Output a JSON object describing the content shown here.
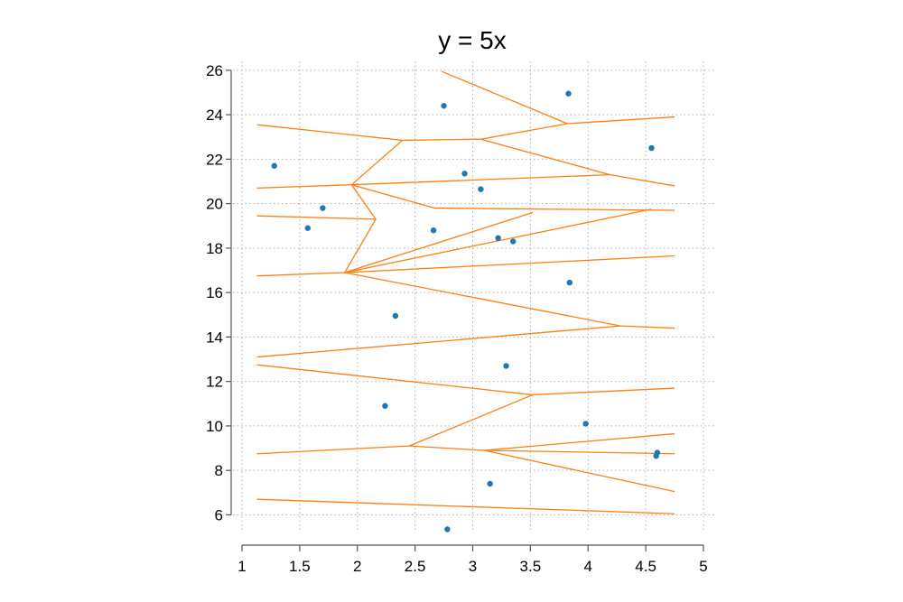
{
  "chart_data": {
    "type": "scatter",
    "title": "y = 5x",
    "xlabel": "",
    "ylabel": "",
    "xlim": [
      1,
      5
    ],
    "ylim": [
      4.8,
      26.4
    ],
    "grid": true,
    "x_ticks": [
      1,
      1.5,
      2,
      2.5,
      3,
      3.5,
      4,
      4.5,
      5
    ],
    "x_tick_labels": [
      "1",
      "1.5",
      "2",
      "2.5",
      "3",
      "3.5",
      "4",
      "4.5",
      "5"
    ],
    "y_ticks": [
      6,
      8,
      10,
      12,
      14,
      16,
      18,
      20,
      22,
      24,
      26
    ],
    "y_tick_labels": [
      "6",
      "8",
      "10",
      "12",
      "14",
      "16",
      "18",
      "20",
      "22",
      "24",
      "26"
    ],
    "colors": {
      "points": "#1f77b4",
      "edges": "#ff7f0e",
      "grid": "#b0b0b0",
      "axis": "#555555"
    },
    "points": [
      {
        "x": 1.28,
        "y": 21.7
      },
      {
        "x": 1.57,
        "y": 18.9
      },
      {
        "x": 1.7,
        "y": 19.8
      },
      {
        "x": 2.24,
        "y": 10.9
      },
      {
        "x": 2.33,
        "y": 14.95
      },
      {
        "x": 2.66,
        "y": 18.8
      },
      {
        "x": 2.75,
        "y": 24.4
      },
      {
        "x": 2.78,
        "y": 5.35
      },
      {
        "x": 2.93,
        "y": 21.35
      },
      {
        "x": 3.07,
        "y": 20.65
      },
      {
        "x": 3.15,
        "y": 7.4
      },
      {
        "x": 3.22,
        "y": 18.45
      },
      {
        "x": 3.29,
        "y": 12.7
      },
      {
        "x": 3.35,
        "y": 18.3
      },
      {
        "x": 3.83,
        "y": 24.95
      },
      {
        "x": 3.84,
        "y": 16.45
      },
      {
        "x": 3.98,
        "y": 10.1
      },
      {
        "x": 4.55,
        "y": 22.5
      },
      {
        "x": 4.59,
        "y": 8.65
      },
      {
        "x": 4.6,
        "y": 8.8
      }
    ],
    "edges": [
      [
        [
          1.13,
          6.7
        ],
        [
          4.75,
          6.05
        ]
      ],
      [
        [
          1.13,
          8.75
        ],
        [
          2.45,
          9.1
        ]
      ],
      [
        [
          2.45,
          9.1
        ],
        [
          3.1,
          8.9
        ]
      ],
      [
        [
          3.1,
          8.9
        ],
        [
          4.75,
          7.05
        ]
      ],
      [
        [
          3.1,
          8.9
        ],
        [
          4.75,
          9.65
        ]
      ],
      [
        [
          3.1,
          8.9
        ],
        [
          4.75,
          8.75
        ]
      ],
      [
        [
          2.45,
          9.1
        ],
        [
          3.52,
          11.4
        ]
      ],
      [
        [
          1.13,
          12.75
        ],
        [
          3.52,
          11.4
        ]
      ],
      [
        [
          3.52,
          11.4
        ],
        [
          4.75,
          11.7
        ]
      ],
      [
        [
          1.13,
          13.1
        ],
        [
          4.28,
          14.5
        ]
      ],
      [
        [
          4.28,
          14.5
        ],
        [
          4.75,
          14.4
        ]
      ],
      [
        [
          1.89,
          16.9
        ],
        [
          4.28,
          14.5
        ]
      ],
      [
        [
          1.13,
          16.75
        ],
        [
          1.89,
          16.9
        ]
      ],
      [
        [
          1.89,
          16.9
        ],
        [
          4.75,
          17.65
        ]
      ],
      [
        [
          1.89,
          16.9
        ],
        [
          4.55,
          19.75
        ]
      ],
      [
        [
          1.89,
          16.9
        ],
        [
          3.52,
          19.6
        ]
      ],
      [
        [
          1.89,
          16.9
        ],
        [
          2.16,
          19.3
        ]
      ],
      [
        [
          1.13,
          19.45
        ],
        [
          2.16,
          19.3
        ]
      ],
      [
        [
          2.16,
          19.3
        ],
        [
          1.95,
          20.85
        ]
      ],
      [
        [
          1.95,
          20.85
        ],
        [
          2.67,
          19.8
        ]
      ],
      [
        [
          2.67,
          19.8
        ],
        [
          4.75,
          19.7
        ]
      ],
      [
        [
          1.13,
          20.7
        ],
        [
          1.95,
          20.85
        ]
      ],
      [
        [
          1.95,
          20.85
        ],
        [
          4.19,
          21.3
        ]
      ],
      [
        [
          1.95,
          20.85
        ],
        [
          2.39,
          22.85
        ]
      ],
      [
        [
          1.13,
          23.55
        ],
        [
          2.39,
          22.85
        ]
      ],
      [
        [
          2.39,
          22.85
        ],
        [
          3.07,
          22.9
        ]
      ],
      [
        [
          3.07,
          22.9
        ],
        [
          3.82,
          23.6
        ]
      ],
      [
        [
          3.07,
          22.9
        ],
        [
          4.19,
          21.3
        ]
      ],
      [
        [
          4.19,
          21.3
        ],
        [
          4.75,
          20.8
        ]
      ],
      [
        [
          2.73,
          25.95
        ],
        [
          3.82,
          23.6
        ]
      ],
      [
        [
          3.82,
          23.6
        ],
        [
          4.75,
          23.9
        ]
      ]
    ]
  }
}
